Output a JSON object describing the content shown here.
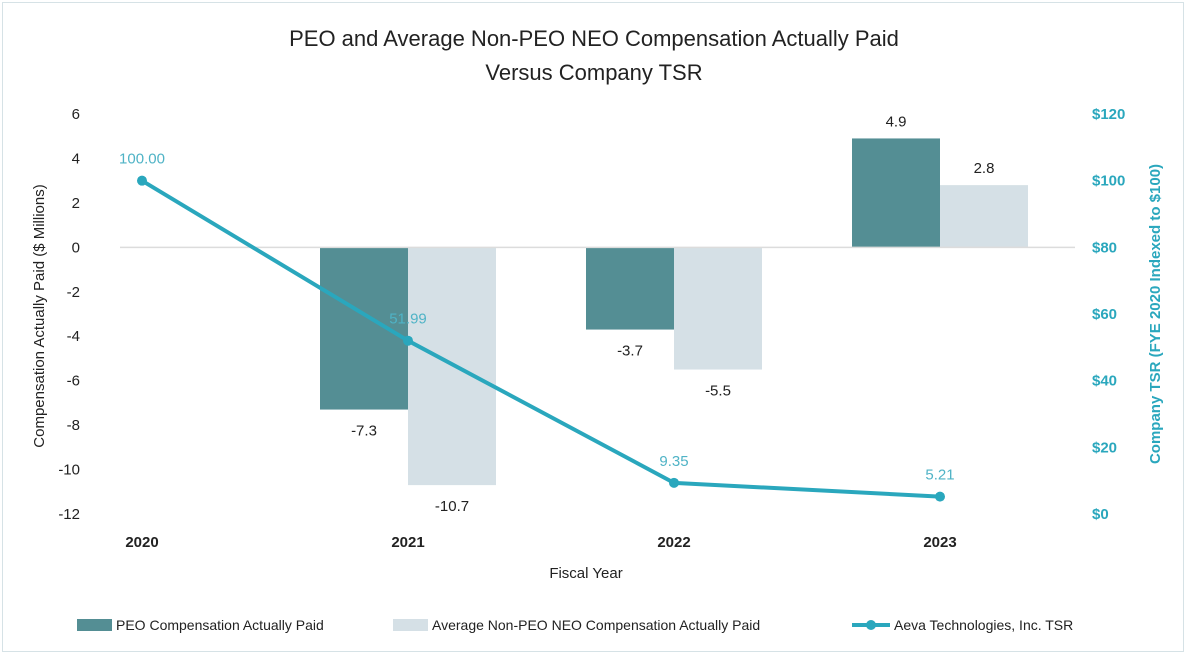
{
  "chart_data": {
    "type": "bar",
    "title_lines": [
      "PEO and Average Non-PEO NEO Compensation Actually Paid",
      "Versus Company TSR"
    ],
    "categories": [
      "2020",
      "2021",
      "2022",
      "2023"
    ],
    "xlabel": "Fiscal Year",
    "ylabel": "Compensation Actually Paid ($ Millions)",
    "ylim": [
      -12,
      6
    ],
    "yticks": [
      6,
      4,
      2,
      0,
      -2,
      -4,
      -6,
      -8,
      -10,
      -12
    ],
    "ylabel_right": "Company TSR (FYE 2020 Indexed to $100)",
    "ylim_right": [
      0,
      120
    ],
    "yticks_right": [
      "$120",
      "$100",
      "$80",
      "$60",
      "$40",
      "$20",
      "$0"
    ],
    "yticks_right_values": [
      120,
      100,
      80,
      60,
      40,
      20,
      0
    ],
    "grid": false,
    "legend_position": "bottom",
    "series": [
      {
        "name": "PEO Compensation Actually Paid",
        "kind": "bar",
        "axis": "left",
        "color": "#548e94",
        "values": [
          null,
          -7.3,
          -3.7,
          4.9
        ],
        "labels": [
          "",
          "-7.3",
          "-3.7",
          "4.9"
        ]
      },
      {
        "name": "Average Non-PEO NEO Compensation Actually Paid",
        "kind": "bar",
        "axis": "left",
        "color": "#d5e0e6",
        "values": [
          null,
          -10.7,
          -5.5,
          2.8
        ],
        "labels": [
          "",
          "-10.7",
          "-5.5",
          "2.8"
        ]
      },
      {
        "name": "Aeva Technologies, Inc. TSR",
        "kind": "line",
        "axis": "right",
        "color": "#2aa7bd",
        "values": [
          100.0,
          51.99,
          9.35,
          5.21
        ],
        "labels": [
          "100.00",
          "51.99",
          "9.35",
          "5.21"
        ]
      }
    ]
  }
}
